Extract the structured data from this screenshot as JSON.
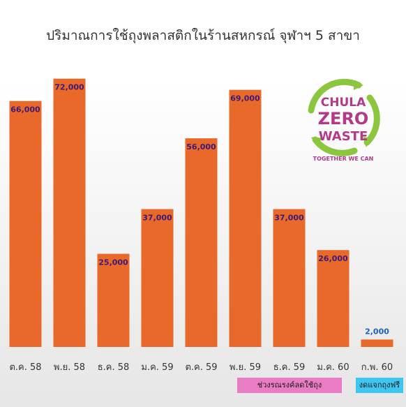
{
  "chart_data": {
    "type": "bar",
    "title": "ปริมาณการใช้ถุงพลาสติกในร้านสหกรณ์ จุฬาฯ 5 สาขา",
    "categories": [
      "ต.ค. 58",
      "พ.ย. 58",
      "ธ.ค. 58",
      "ม.ค. 59",
      "ต.ค. 59",
      "พ.ย. 59",
      "ธ.ค. 59",
      "ม.ค. 60",
      "ก.พ. 60"
    ],
    "values": [
      66000,
      72000,
      25000,
      37000,
      56000,
      69000,
      37000,
      26000,
      2000
    ],
    "value_labels": [
      "66,000",
      "72,000",
      "25,000",
      "37,000",
      "56,000",
      "69,000",
      "37,000",
      "26,000",
      "2,000"
    ],
    "ylim": [
      0,
      80000
    ],
    "grid": false,
    "bar_color": "#e8692a",
    "value_label_color": "#3d1a78",
    "last_value_label_color": "#1f5fbf",
    "legend": [
      {
        "label": "ช่วงรณรงค์ลดใช้ถุง",
        "color": "#e97cc3"
      },
      {
        "label": "งดแจกถุงฟรี",
        "color": "#3fc5ef"
      }
    ]
  },
  "logo": {
    "line1": "CHULA",
    "line2": "ZERO",
    "line3": "WASTE",
    "tagline": "TOGETHER WE CAN",
    "arrow_color": "#8cc63f",
    "text_color": "#b23a88"
  }
}
